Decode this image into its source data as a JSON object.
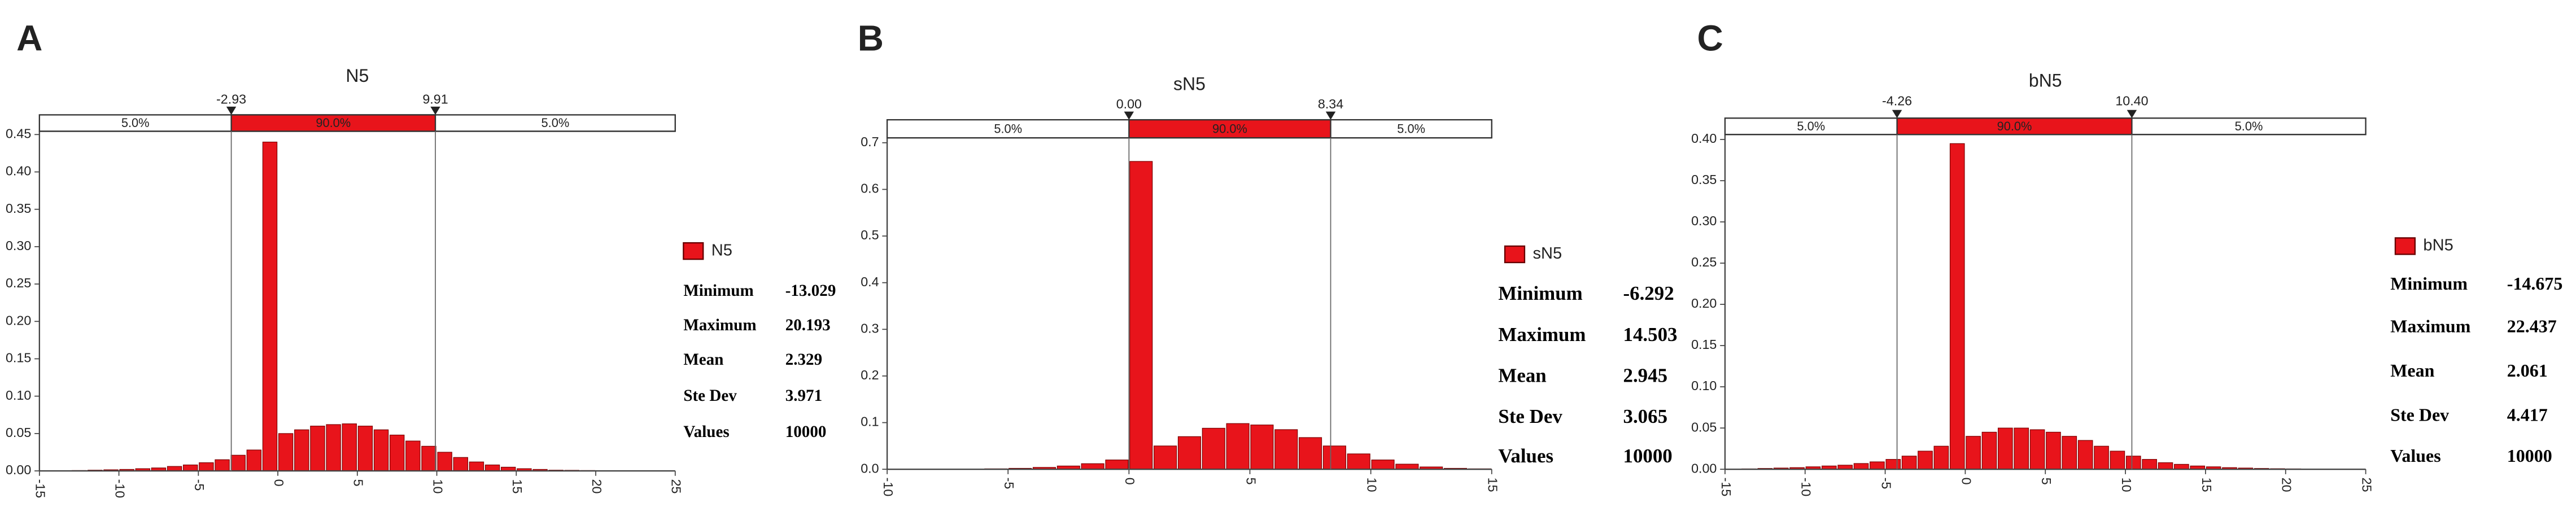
{
  "chart_data": [
    {
      "type": "histogram",
      "panel_label": "A",
      "title": "N5",
      "series": [
        {
          "name": "N5",
          "color": "#e8141b",
          "values": [
            0.0005,
            0.001,
            0.0015,
            0.002,
            0.003,
            0.004,
            0.006,
            0.008,
            0.011,
            0.015,
            0.021,
            0.028,
            0.44,
            0.05,
            0.055,
            0.06,
            0.062,
            0.063,
            0.06,
            0.055,
            0.048,
            0.04,
            0.033,
            0.025,
            0.018,
            0.012,
            0.008,
            0.005,
            0.003,
            0.002,
            0.001,
            0.0008,
            0.0005,
            0.0003
          ]
        }
      ],
      "bins": [
        -13,
        -12,
        -11,
        -10,
        -9,
        -8,
        -7,
        -6,
        -5,
        -4,
        -3,
        -2,
        -1,
        0,
        1,
        2,
        3,
        4,
        5,
        6,
        7,
        8,
        9,
        10,
        11,
        12,
        13,
        14,
        15,
        16,
        17,
        18,
        19,
        20,
        21
      ],
      "xlim": [
        -15,
        25
      ],
      "xticks": [
        -15,
        -10,
        -5,
        0,
        5,
        10,
        15,
        20,
        25
      ],
      "ylim": [
        0,
        0.45
      ],
      "yticks": [
        {
          "value": 0,
          "label": "0.00"
        },
        {
          "value": 0.05,
          "label": "0.05"
        },
        {
          "value": 0.1,
          "label": "0.10"
        },
        {
          "value": 0.15,
          "label": "0.15"
        },
        {
          "value": 0.2,
          "label": "0.20"
        },
        {
          "value": 0.25,
          "label": "0.25"
        },
        {
          "value": 0.3,
          "label": "0.30"
        },
        {
          "value": 0.35,
          "label": "0.35"
        },
        {
          "value": 0.4,
          "label": "0.40"
        },
        {
          "value": 0.45,
          "label": "0.45"
        }
      ],
      "delimiters": [
        -2.93,
        9.91
      ],
      "band_labels": [
        {
          "value": 5,
          "label": "5.0%"
        },
        {
          "value": 90,
          "label": "90.0%"
        },
        {
          "value": 5,
          "label": "5.0%"
        }
      ],
      "stats": [
        {
          "label": "Minimum",
          "value": -13.029
        },
        {
          "label": "Maximum",
          "value": 20.193
        },
        {
          "label": "Mean",
          "value": 2.329
        },
        {
          "label": "Ste Dev",
          "value": 3.971
        },
        {
          "label": "Values",
          "value": 10000
        }
      ]
    },
    {
      "type": "histogram",
      "panel_label": "B",
      "title": "sN5",
      "series": [
        {
          "name": "sN5",
          "color": "#e8141b",
          "values": [
            0.0005,
            0.001,
            0.002,
            0.004,
            0.007,
            0.012,
            0.02,
            0.66,
            0.05,
            0.07,
            0.088,
            0.098,
            0.095,
            0.085,
            0.068,
            0.05,
            0.033,
            0.02,
            0.011,
            0.005,
            0.002,
            0.001
          ]
        }
      ],
      "bins": [
        -7,
        -6,
        -5,
        -4,
        -3,
        -2,
        -1,
        0,
        1,
        2,
        3,
        4,
        5,
        6,
        7,
        8,
        9,
        10,
        11,
        12,
        13,
        14,
        15
      ],
      "xlim": [
        -10,
        15
      ],
      "xticks": [
        -10,
        -5,
        0,
        5,
        10,
        15
      ],
      "ylim": [
        0,
        0.7
      ],
      "yticks": [
        {
          "value": 0,
          "label": "0.0"
        },
        {
          "value": 0.1,
          "label": "0.1"
        },
        {
          "value": 0.2,
          "label": "0.2"
        },
        {
          "value": 0.3,
          "label": "0.3"
        },
        {
          "value": 0.4,
          "label": "0.4"
        },
        {
          "value": 0.5,
          "label": "0.5"
        },
        {
          "value": 0.6,
          "label": "0.6"
        },
        {
          "value": 0.7,
          "label": "0.7"
        }
      ],
      "delimiters": [
        {
          "value": 0,
          "label": "0.00"
        },
        8.34
      ],
      "band_labels": [
        {
          "value": 5,
          "label": "5.0%"
        },
        {
          "value": 90,
          "label": "90.0%"
        },
        {
          "value": 5,
          "label": "5.0%"
        }
      ],
      "stats": [
        {
          "label": "Minimum",
          "value": -6.292
        },
        {
          "label": "Maximum",
          "value": 14.503
        },
        {
          "label": "Mean",
          "value": 2.945
        },
        {
          "label": "Ste Dev",
          "value": 3.065
        },
        {
          "label": "Values",
          "value": 10000
        }
      ]
    },
    {
      "type": "histogram",
      "panel_label": "C",
      "title": "bN5",
      "series": [
        {
          "name": "bN5",
          "color": "#e8141b",
          "values": [
            0.0003,
            0.0005,
            0.001,
            0.0015,
            0.002,
            0.003,
            0.004,
            0.005,
            0.007,
            0.009,
            0.012,
            0.016,
            0.022,
            0.028,
            0.395,
            0.04,
            0.045,
            0.05,
            0.05,
            0.048,
            0.045,
            0.04,
            0.035,
            0.028,
            0.022,
            0.016,
            0.012,
            0.008,
            0.006,
            0.004,
            0.003,
            0.002,
            0.0015,
            0.001,
            0.0007,
            0.0005,
            0.0003,
            0.0002
          ]
        }
      ],
      "bins": [
        -15,
        -14,
        -13,
        -12,
        -11,
        -10,
        -9,
        -8,
        -7,
        -6,
        -5,
        -4,
        -3,
        -2,
        -1,
        0,
        1,
        2,
        3,
        4,
        5,
        6,
        7,
        8,
        9,
        10,
        11,
        12,
        13,
        14,
        15,
        16,
        17,
        18,
        19,
        20,
        21,
        22,
        23
      ],
      "xlim": [
        -15,
        25
      ],
      "xticks": [
        -15,
        -10,
        -5,
        0,
        5,
        10,
        15,
        20,
        25
      ],
      "ylim": [
        0,
        0.4
      ],
      "yticks": [
        {
          "value": 0,
          "label": "0.00"
        },
        {
          "value": 0.05,
          "label": "0.05"
        },
        {
          "value": 0.1,
          "label": "0.10"
        },
        {
          "value": 0.15,
          "label": "0.15"
        },
        {
          "value": 0.2,
          "label": "0.20"
        },
        {
          "value": 0.25,
          "label": "0.25"
        },
        {
          "value": 0.3,
          "label": "0.30"
        },
        {
          "value": 0.35,
          "label": "0.35"
        },
        {
          "value": 0.4,
          "label": "0.40"
        }
      ],
      "delimiters": [
        -4.26,
        {
          "value": 10.4,
          "label": "10.40"
        }
      ],
      "band_labels": [
        {
          "value": 5,
          "label": "5.0%"
        },
        {
          "value": 90,
          "label": "90.0%"
        },
        {
          "value": 5,
          "label": "5.0%"
        }
      ],
      "stats": [
        {
          "label": "Minimum",
          "value": -14.675
        },
        {
          "label": "Maximum",
          "value": 22.437
        },
        {
          "label": "Mean",
          "value": 2.061
        },
        {
          "label": "Ste Dev",
          "value": 4.417
        },
        {
          "label": "Values",
          "value": 10000
        }
      ]
    }
  ]
}
